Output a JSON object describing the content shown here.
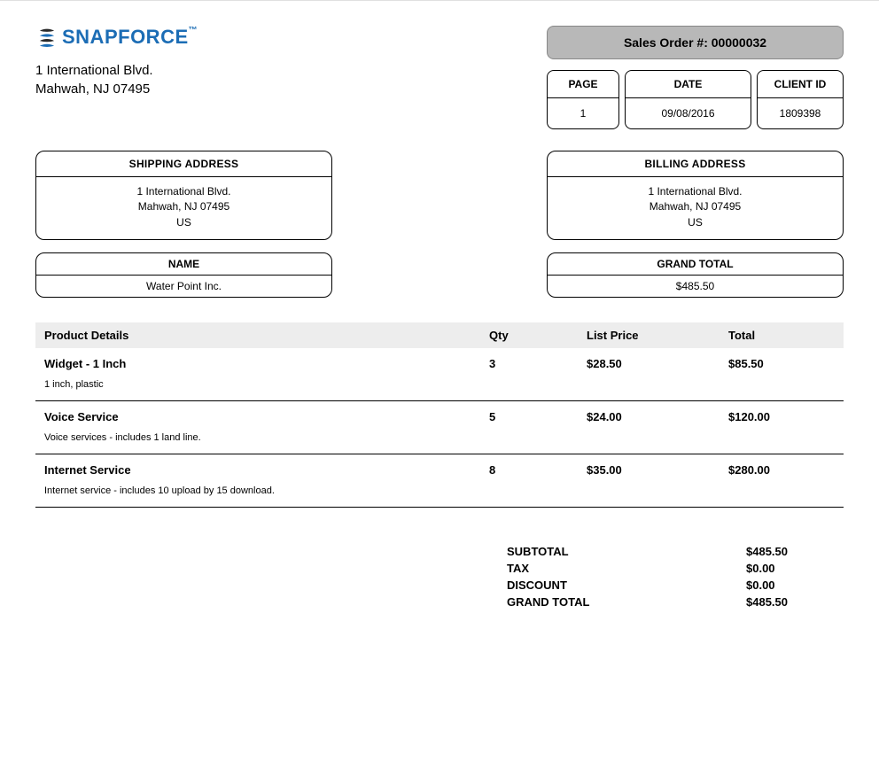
{
  "logo": {
    "text1": "SNAP",
    "text2": "FORCE",
    "tm": "™"
  },
  "company": {
    "address_line1": "1 International Blvd.",
    "address_line2": "Mahwah, NJ 07495"
  },
  "order": {
    "label": "Sales Order #: 00000032"
  },
  "meta": {
    "page": {
      "label": "PAGE",
      "value": "1"
    },
    "date": {
      "label": "DATE",
      "value": "09/08/2016"
    },
    "client": {
      "label": "CLIENT ID",
      "value": "1809398"
    }
  },
  "shipping": {
    "label": "SHIPPING ADDRESS",
    "line1": "1 International Blvd.",
    "line2": "Mahwah, NJ 07495",
    "country": "US"
  },
  "billing": {
    "label": "BILLING ADDRESS",
    "line1": "1 International Blvd.",
    "line2": "Mahwah, NJ 07495",
    "country": "US"
  },
  "name_box": {
    "label": "NAME",
    "value": "Water Point Inc."
  },
  "grand_box": {
    "label": "GRAND TOTAL",
    "value": "$485.50"
  },
  "table": {
    "headers": {
      "details": "Product Details",
      "qty": "Qty",
      "price": "List Price",
      "total": "Total"
    },
    "rows": [
      {
        "name": "Widget - 1 Inch",
        "desc": "1 inch, plastic",
        "qty": "3",
        "price": "$28.50",
        "total": "$85.50"
      },
      {
        "name": "Voice Service",
        "desc": "Voice services - includes 1 land line.",
        "qty": "5",
        "price": "$24.00",
        "total": "$120.00"
      },
      {
        "name": "Internet Service",
        "desc": "Internet service - includes 10 upload by 15 download.",
        "qty": "8",
        "price": "$35.00",
        "total": "$280.00"
      }
    ]
  },
  "totals": {
    "subtotal": {
      "label": "SUBTOTAL",
      "value": "$485.50"
    },
    "tax": {
      "label": "TAX",
      "value": "$0.00"
    },
    "discount": {
      "label": "DISCOUNT",
      "value": "$0.00"
    },
    "grand": {
      "label": "GRAND TOTAL",
      "value": "$485.50"
    }
  },
  "colors": {
    "brand_blue": "#1c6db5",
    "order_box_bg": "#b8b8b8",
    "header_row_bg": "#ededed"
  }
}
